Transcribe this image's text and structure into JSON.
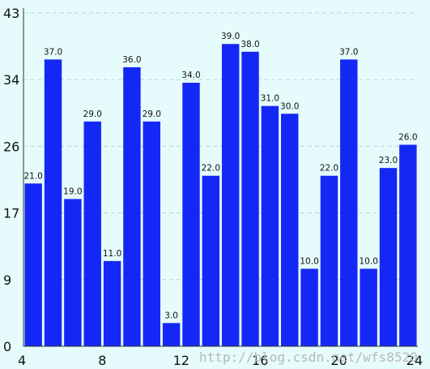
{
  "chart_data": {
    "type": "bar",
    "x": [
      4.5,
      5.5,
      6.5,
      7.5,
      8.5,
      9.5,
      10.5,
      11.5,
      12.5,
      13.5,
      14.5,
      15.5,
      16.5,
      17.5,
      18.5,
      19.5,
      20.5,
      21.5,
      22.5,
      23.5
    ],
    "values": [
      21,
      37,
      19,
      29,
      11,
      36,
      29,
      3,
      34,
      22,
      39,
      38,
      31,
      30,
      10,
      22,
      37,
      10,
      23,
      26
    ],
    "data_labels": [
      "21.0",
      "37.0",
      "19.0",
      "29.0",
      "11.0",
      "36.0",
      "29.0",
      "3.0",
      "34.0",
      "22.0",
      "39.0",
      "38.0",
      "31.0",
      "30.0",
      "10.0",
      "22.0",
      "37.0",
      "10.0",
      "23.0",
      "26.0"
    ],
    "xlim": [
      4,
      24
    ],
    "ylim": [
      0,
      43
    ],
    "x_ticks": [
      4,
      8,
      12,
      16,
      20,
      24
    ],
    "x_tick_labels": [
      "4",
      "8",
      "12",
      "16",
      "20",
      "24"
    ],
    "y_ticks": [
      0,
      8.6,
      17.2,
      25.8,
      34.4,
      43
    ],
    "y_tick_labels": [
      "0",
      "9",
      "17",
      "26",
      "34",
      "43"
    ],
    "title": "",
    "xlabel": "",
    "ylabel": "",
    "grid": "horizontal-dashed",
    "legend": "none",
    "colors": {
      "bar": "#1428f5",
      "background": "#e6fbfc",
      "grid": "#b9d2d4",
      "axis": "#333333"
    }
  },
  "watermark": "http://blog.csdn.net/wfs8520"
}
